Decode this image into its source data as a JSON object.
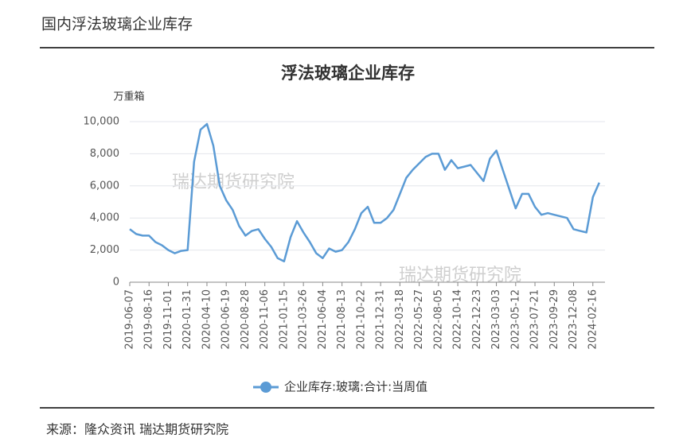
{
  "header": {
    "title": "国内浮法玻璃企业库存"
  },
  "chart_data": {
    "type": "line",
    "title": "浮法玻璃企业库存",
    "y_label": "万重箱",
    "watermarks": [
      "瑞达期货研究院",
      "瑞达期货研究院"
    ],
    "categories": [
      "2019-06-07",
      null,
      null,
      "2019-08-16",
      null,
      null,
      "2019-11-01",
      null,
      null,
      "2020-01-31",
      null,
      null,
      "2020-04-10",
      null,
      null,
      "2020-06-19",
      null,
      null,
      "2020-08-28",
      null,
      null,
      "2020-11-06",
      null,
      null,
      "2021-01-15",
      null,
      null,
      "2021-03-26",
      null,
      null,
      "2021-06-04",
      null,
      null,
      "2021-08-13",
      null,
      null,
      "2021-10-22",
      null,
      null,
      "2021-12-31",
      null,
      null,
      "2022-03-18",
      null,
      null,
      "2022-05-27",
      null,
      null,
      "2022-08-05",
      null,
      null,
      "2022-10-14",
      null,
      null,
      "2022-12-23",
      null,
      null,
      "2023-03-03",
      null,
      null,
      "2023-05-12",
      null,
      null,
      "2023-07-21",
      null,
      null,
      "2023-09-29",
      null,
      null,
      "2023-12-08",
      null,
      null,
      "2024-02-16",
      null
    ],
    "series": [
      {
        "name": "企业库存:玻璃:合计:当周值",
        "color": "#5b9bd5",
        "values": [
          3300,
          3000,
          2900,
          2900,
          2500,
          2300,
          2000,
          1800,
          1950,
          2000,
          7500,
          9500,
          9850,
          8500,
          6000,
          5100,
          4500,
          3500,
          2900,
          3200,
          3300,
          2700,
          2200,
          1500,
          1300,
          2800,
          3800,
          3100,
          2500,
          1800,
          1500,
          2100,
          1900,
          2000,
          2500,
          3300,
          4300,
          4700,
          3700,
          3700,
          4000,
          4500,
          5500,
          6500,
          7000,
          7400,
          7800,
          8000,
          8000,
          7000,
          7600,
          7100,
          7200,
          7300,
          6800,
          6300,
          7700,
          8200,
          7000,
          5800,
          4600,
          5500,
          5500,
          4700,
          4200,
          4300,
          4200,
          4100,
          4000,
          3300,
          3200,
          3100,
          5300,
          6200
        ]
      }
    ],
    "ylim": [
      0,
      10000
    ],
    "yticks": [
      0,
      {
        "value": 2000,
        "label": "2,000"
      },
      {
        "value": 4000,
        "label": "4,000"
      },
      {
        "value": 6000,
        "label": "6,000"
      },
      {
        "value": 8000,
        "label": "8,000"
      },
      {
        "value": 10000,
        "label": "10,000"
      }
    ],
    "grid": true
  },
  "footer": {
    "source": "来源：隆众资讯 瑞达期货研究院"
  }
}
